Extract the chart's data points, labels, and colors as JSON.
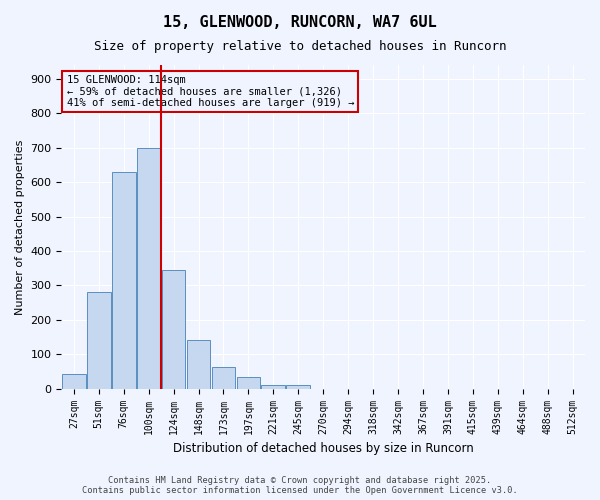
{
  "title": "15, GLENWOOD, RUNCORN, WA7 6UL",
  "subtitle": "Size of property relative to detached houses in Runcorn",
  "xlabel": "Distribution of detached houses by size in Runcorn",
  "ylabel": "Number of detached properties",
  "footer_line1": "Contains HM Land Registry data © Crown copyright and database right 2025.",
  "footer_line2": "Contains public sector information licensed under the Open Government Licence v3.0.",
  "bar_color": "#c5d8f0",
  "bar_edge_color": "#5a8fc0",
  "background_color": "#f0f4ff",
  "grid_color": "#ffffff",
  "annotation_box_color": "#cc0000",
  "vline_color": "#cc0000",
  "categories": [
    "27sqm",
    "51sqm",
    "76sqm",
    "100sqm",
    "124sqm",
    "148sqm",
    "173sqm",
    "197sqm",
    "221sqm",
    "245sqm",
    "270sqm",
    "294sqm",
    "318sqm",
    "342sqm",
    "367sqm",
    "391sqm",
    "415sqm",
    "439sqm",
    "464sqm",
    "488sqm",
    "512sqm"
  ],
  "values": [
    42,
    280,
    630,
    700,
    345,
    140,
    62,
    35,
    12,
    10,
    0,
    0,
    0,
    0,
    0,
    0,
    0,
    0,
    0,
    0,
    0
  ],
  "property_size": 114,
  "property_name": "15 GLENWOOD: 114sqm",
  "annotation_line1": "15 GLENWOOD: 114sqm",
  "annotation_line2": "← 59% of detached houses are smaller (1,326)",
  "annotation_line3": "41% of semi-detached houses are larger (919) →",
  "vline_position": 3.5,
  "ylim": [
    0,
    940
  ],
  "yticks": [
    0,
    100,
    200,
    300,
    400,
    500,
    600,
    700,
    800,
    900
  ]
}
